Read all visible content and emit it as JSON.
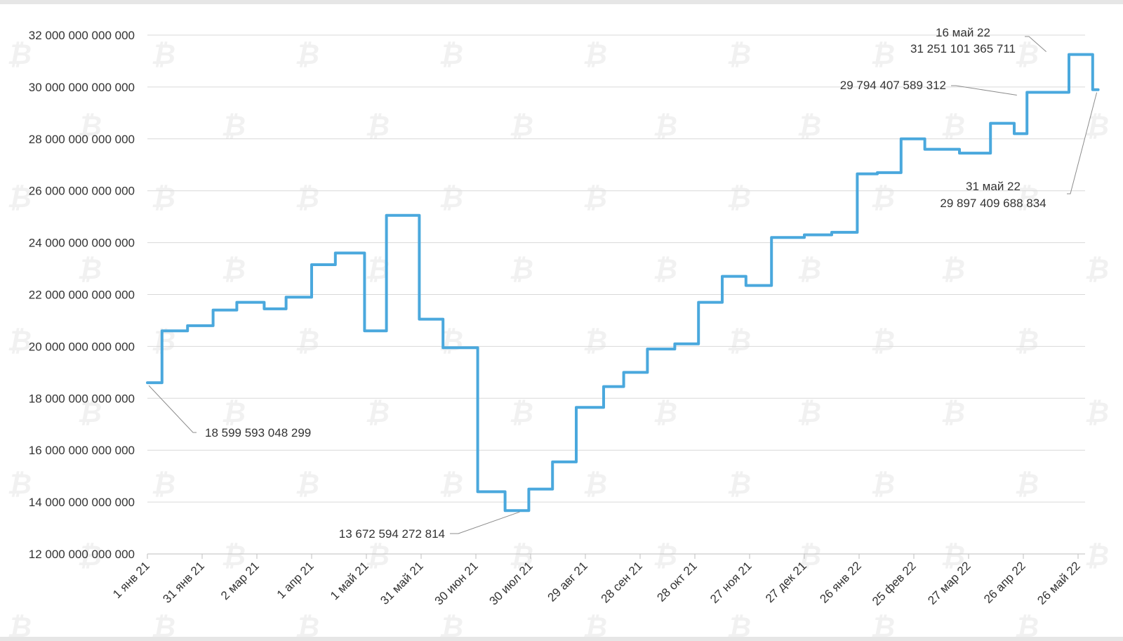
{
  "chart_data": {
    "type": "line",
    "step": true,
    "title": "",
    "xlabel": "",
    "ylabel": "",
    "ylim": [
      12000000000000,
      32000000000000
    ],
    "y_ticks": [
      "12 000 000 000 000",
      "14 000 000 000 000",
      "16 000 000 000 000",
      "18 000 000 000 000",
      "20 000 000 000 000",
      "22 000 000 000 000",
      "24 000 000 000 000",
      "26 000 000 000 000",
      "28 000 000 000 000",
      "30 000 000 000 000",
      "32 000 000 000 000"
    ],
    "x_ticks": [
      "1 янв 21",
      "31 янв 21",
      "2 мар 21",
      "1 апр 21",
      "1 май 21",
      "31 май 21",
      "30 июн 21",
      "30 июл 21",
      "29 авг 21",
      "28 сен 21",
      "28 окт 21",
      "27 ноя 21",
      "27 дек 21",
      "26 янв 22",
      "25 фев 22",
      "27 мар 22",
      "26 апр 22",
      "26 май 22"
    ],
    "x_tick_days": [
      0,
      30,
      60,
      90,
      120,
      150,
      180,
      210,
      240,
      270,
      300,
      330,
      360,
      390,
      420,
      450,
      480,
      510
    ],
    "grid": true,
    "legend": "none",
    "color": "#4aa8dd",
    "series": [
      {
        "x_days": [
          0,
          8,
          22,
          36,
          49,
          64,
          76,
          90,
          103,
          119,
          131,
          149,
          162,
          181,
          196,
          209,
          222,
          235,
          250,
          261,
          274,
          289,
          302,
          315,
          328,
          342,
          360,
          375,
          389,
          400,
          413,
          426,
          445,
          462,
          475,
          482,
          505,
          518,
          521
        ],
        "values": [
          18599593048299,
          20600000000000,
          20800000000000,
          21400000000000,
          21700000000000,
          21450000000000,
          21900000000000,
          23150000000000,
          23600000000000,
          20600000000000,
          25050000000000,
          21050000000000,
          19950000000000,
          14400000000000,
          13672594272814,
          14500000000000,
          15550000000000,
          17650000000000,
          18450000000000,
          19000000000000,
          19900000000000,
          20100000000000,
          21700000000000,
          22700000000000,
          22350000000000,
          24200000000000,
          24300000000000,
          24400000000000,
          26650000000000,
          26700000000000,
          28000000000000,
          27600000000000,
          27450000000000,
          28600000000000,
          28200000000000,
          29794407589312,
          31251101365711,
          29897409688834,
          29897409688834
        ]
      }
    ],
    "annotations": [
      {
        "lines": [
          "18 599 593 048 299"
        ],
        "x_day": 0,
        "y": 18599593048299
      },
      {
        "lines": [
          "13 672 594 272 814"
        ],
        "x_day": 204,
        "y": 13672594272814
      },
      {
        "lines": [
          "29 794 407 589 312"
        ],
        "x_day": 478,
        "y": 29794407589312
      },
      {
        "lines": [
          "16 май 22",
          "31 251 101 365 711"
        ],
        "x_day": 505,
        "y": 31251101365711
      },
      {
        "lines": [
          "31 май 22",
          "29 897 409 688 834"
        ],
        "x_day": 521,
        "y": 29897409688834
      }
    ]
  }
}
